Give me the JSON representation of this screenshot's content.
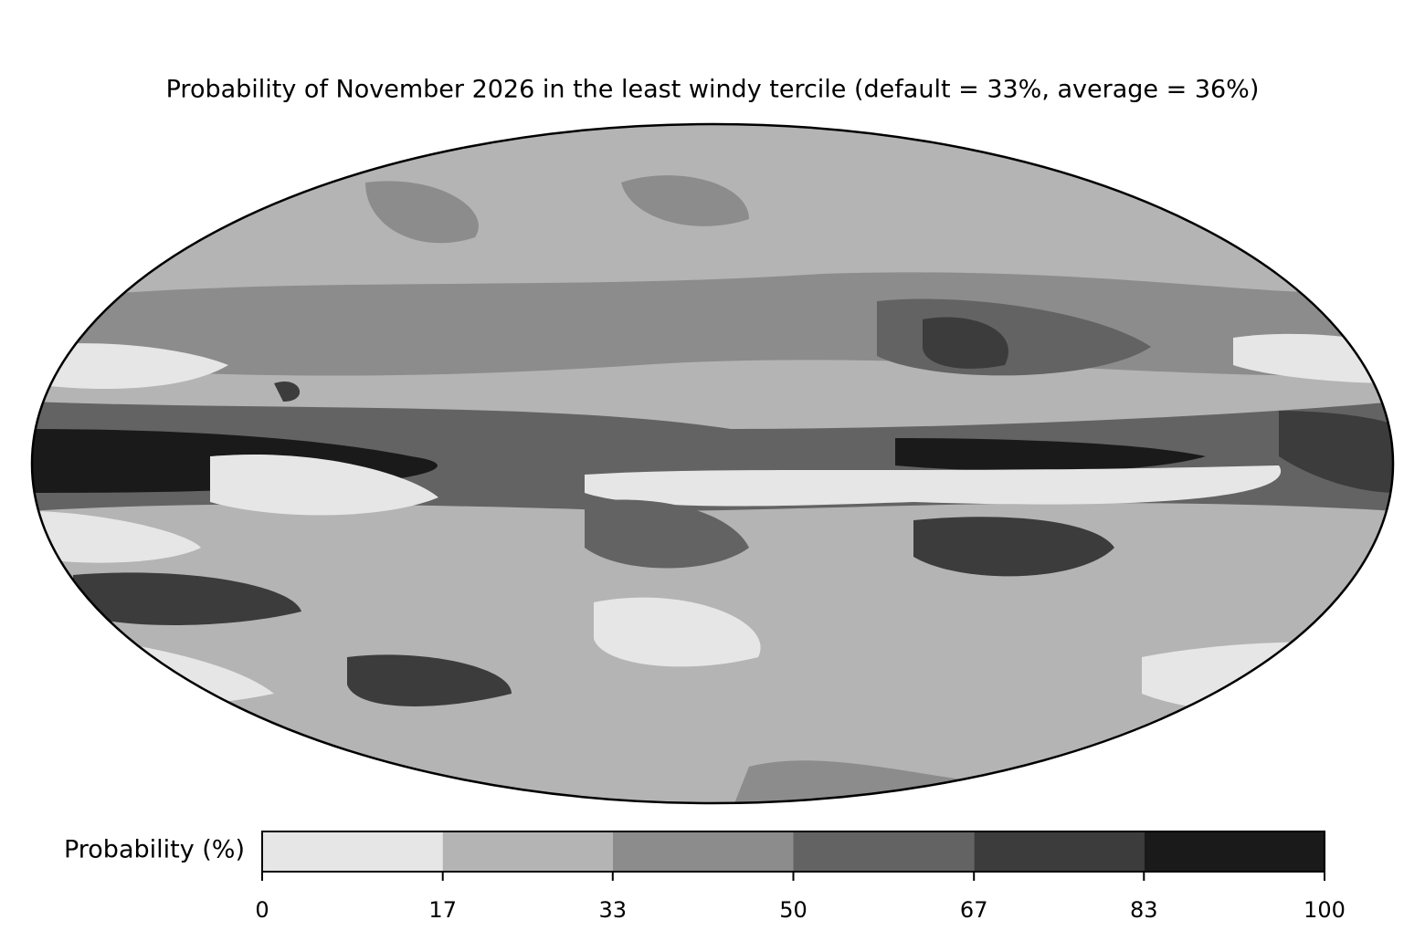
{
  "chart_data": {
    "type": "map",
    "title": "Probability of November 2026 in the least windy tercile (default = 33%, average = 36%)",
    "colorbar_label": "Probability (%)",
    "levels": [
      0,
      17,
      33,
      50,
      67,
      83,
      100
    ],
    "colors": [
      "#e6e6e6",
      "#b4b4b4",
      "#8c8c8c",
      "#636363",
      "#3c3c3c",
      "#1a1a1a"
    ],
    "clim": [
      0,
      100
    ],
    "ticks": [
      0,
      17,
      33,
      50,
      67,
      83,
      100
    ]
  }
}
